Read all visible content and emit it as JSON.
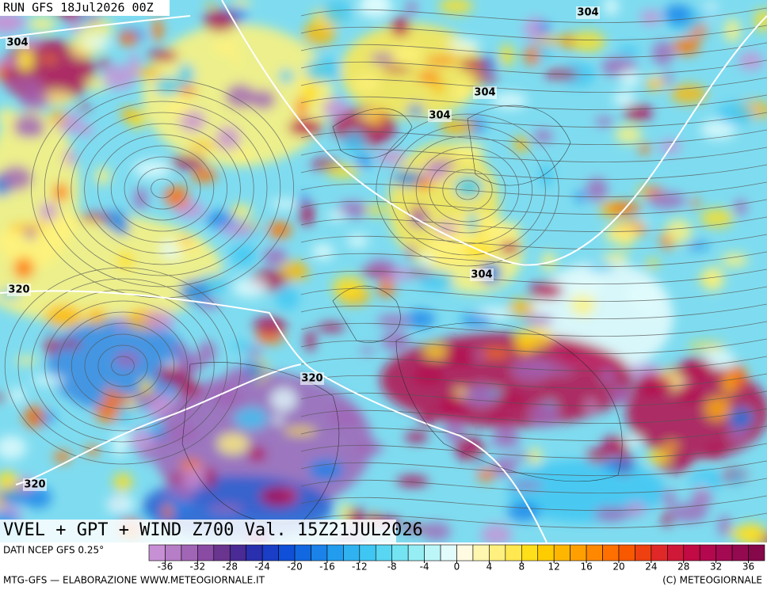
{
  "header": {
    "run": "RUN GFS 18Jul2026 00Z"
  },
  "title": "VVEL + GPT + WIND Z700 Val. 15Z21JUL2026",
  "source": "DATI NCEP GFS 0.25°",
  "footer_left": "MTG-GFS — ELABORAZIONE WWW.METEOGIORNALE.IT",
  "footer_right": "(C) METEOGIORNALE",
  "contour_labels": [
    304,
    304,
    304,
    304,
    304,
    320,
    320,
    320
  ],
  "colorbar": {
    "range": [
      -38,
      38
    ],
    "ticks": [
      -36,
      -32,
      -28,
      -24,
      -20,
      -16,
      -12,
      -8,
      -4,
      0,
      4,
      8,
      12,
      16,
      20,
      24,
      28,
      32,
      36
    ],
    "colors": [
      "#c890d4",
      "#b67ec6",
      "#a165b6",
      "#8a4ba4",
      "#6a358f",
      "#4a2a94",
      "#2a2fae",
      "#1a3ec6",
      "#1050d8",
      "#1268e0",
      "#1a82e8",
      "#229cee",
      "#30b2f0",
      "#40c6f2",
      "#58d6f2",
      "#74e4f2",
      "#96eef4",
      "#bcf6f8",
      "#e2fcfc",
      "#fffbe2",
      "#fff6b0",
      "#fff080",
      "#ffe850",
      "#ffde1a",
      "#ffcc00",
      "#ffb600",
      "#ffa000",
      "#ff8800",
      "#ff7000",
      "#f85800",
      "#ee4010",
      "#e02828",
      "#d01838",
      "#c20a44",
      "#b4084e",
      "#a40a52",
      "#940a50",
      "#84084a"
    ]
  }
}
